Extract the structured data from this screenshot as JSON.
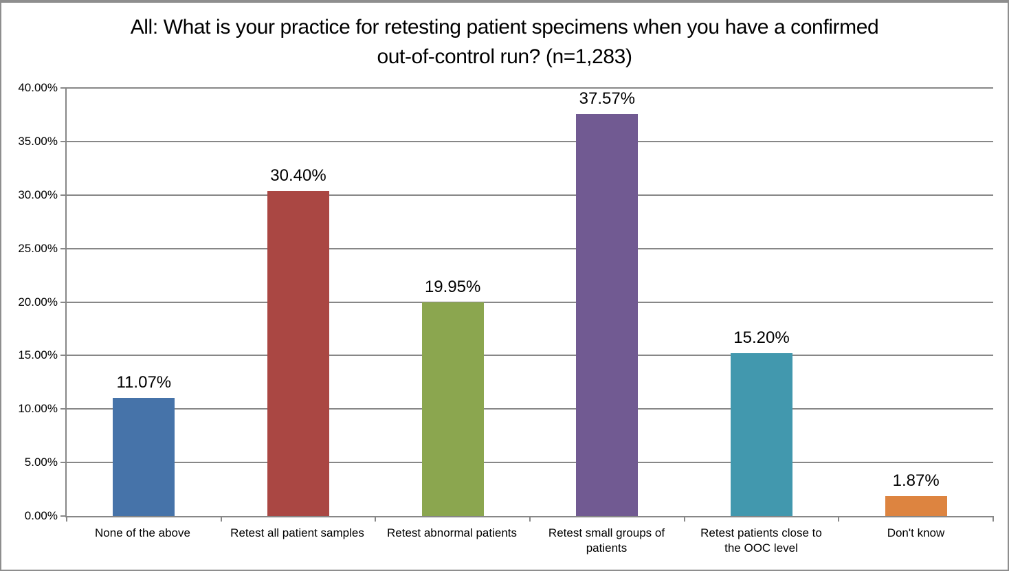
{
  "chart_data": {
    "type": "bar",
    "title": "All: What is your practice for retesting patient specimens when you have a confirmed out-of-control run? (n=1,283)",
    "categories": [
      "None of the above",
      "Retest all patient samples",
      "Retest abnormal patients",
      "Retest small groups of patients",
      "Retest patients close to the OOC level",
      "Don't know"
    ],
    "values": [
      11.07,
      30.4,
      19.95,
      37.57,
      15.2,
      1.87
    ],
    "data_labels": [
      "11.07%",
      "30.40%",
      "19.95%",
      "37.57%",
      "15.20%",
      "1.87%"
    ],
    "bar_colors": [
      "#4673A9",
      "#AA4743",
      "#8BA64F",
      "#715A92",
      "#4298AE",
      "#DD8440"
    ],
    "xlabel": "",
    "ylabel": "",
    "ylim": [
      0,
      40
    ],
    "y_ticks": [
      {
        "value": 0,
        "label": "0.00%"
      },
      {
        "value": 5,
        "label": "5.00%"
      },
      {
        "value": 10,
        "label": "10.00%"
      },
      {
        "value": 15,
        "label": "15.00%"
      },
      {
        "value": 20,
        "label": "20.00%"
      },
      {
        "value": 25,
        "label": "25.00%"
      },
      {
        "value": 30,
        "label": "30.00%"
      },
      {
        "value": 35,
        "label": "35.00%"
      },
      {
        "value": 40,
        "label": "40.00%"
      }
    ],
    "grid": true,
    "legend": "none"
  },
  "style": {
    "grid_color": "#878787",
    "axis_color": "#878787",
    "border_color": "#8E8E8E",
    "background": "#FFFFFF",
    "text_color": "#000000"
  }
}
